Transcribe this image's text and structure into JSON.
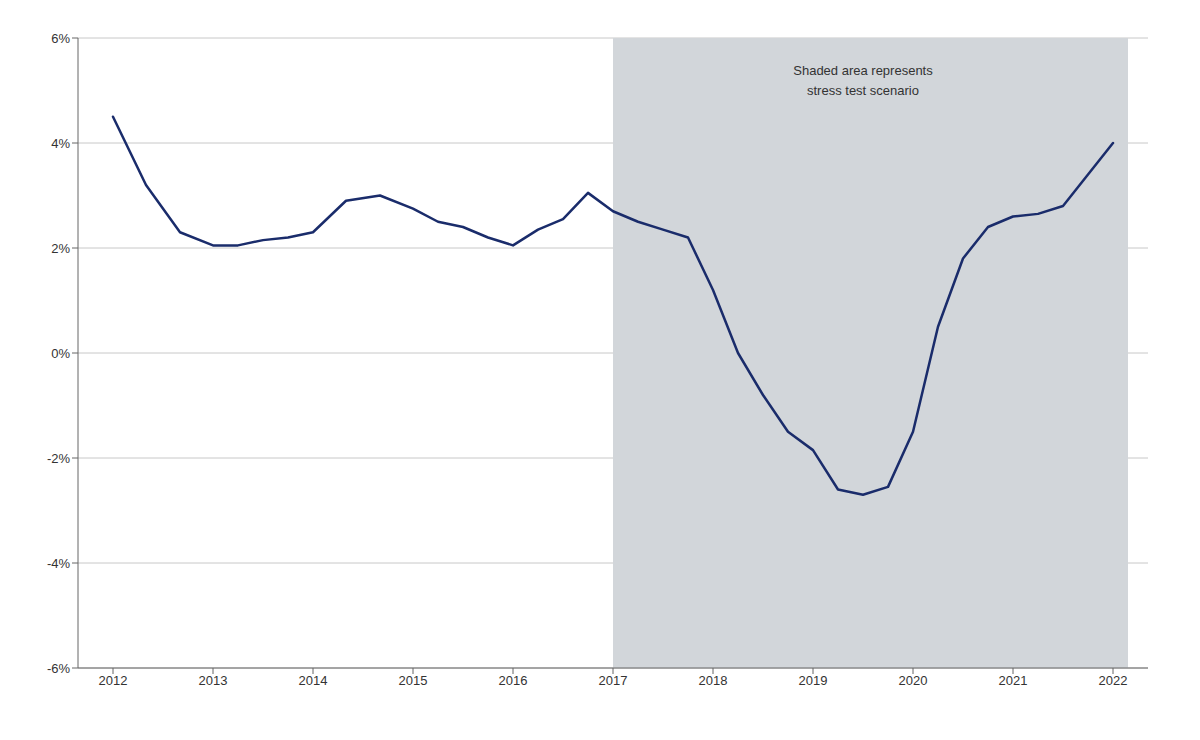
{
  "chart_data": {
    "type": "line",
    "x": [
      2012.0,
      2012.33,
      2012.67,
      2013.0,
      2013.25,
      2013.5,
      2013.75,
      2014.0,
      2014.33,
      2014.67,
      2015.0,
      2015.25,
      2015.5,
      2015.75,
      2016.0,
      2016.25,
      2016.5,
      2016.75,
      2017.0,
      2017.25,
      2017.5,
      2017.75,
      2018.0,
      2018.25,
      2018.5,
      2018.75,
      2019.0,
      2019.25,
      2019.5,
      2019.75,
      2020.0,
      2020.25,
      2020.5,
      2020.75,
      2021.0,
      2021.25,
      2021.5,
      2021.75,
      2022.0
    ],
    "values": [
      4.5,
      3.2,
      2.3,
      2.05,
      2.05,
      2.15,
      2.2,
      2.3,
      2.9,
      3.0,
      2.75,
      2.5,
      2.4,
      2.2,
      2.05,
      2.35,
      2.55,
      3.05,
      2.7,
      2.5,
      2.35,
      2.2,
      1.2,
      0.0,
      -0.8,
      -1.5,
      -1.85,
      -2.6,
      -2.7,
      -2.55,
      -1.5,
      0.5,
      1.8,
      2.4,
      2.6,
      2.65,
      2.8,
      3.4,
      4.0
    ],
    "color": "#1a2c6b",
    "xlim": [
      2011.65,
      2022.35
    ],
    "xticks": [
      2012,
      2013,
      2014,
      2015,
      2016,
      2017,
      2018,
      2019,
      2020,
      2021,
      2022
    ],
    "ylim": [
      -6,
      6
    ],
    "yticks": [
      {
        "value": -6,
        "label": "-6%"
      },
      {
        "value": -4,
        "label": "-4%"
      },
      {
        "value": -2,
        "label": "-2%"
      },
      {
        "value": 0,
        "label": "0%"
      },
      {
        "value": 2,
        "label": "2%"
      },
      {
        "value": 4,
        "label": "4%"
      },
      {
        "value": 6,
        "label": "6%"
      }
    ],
    "grid": "y",
    "shaded_regions": [
      {
        "x": [
          2017.0,
          2022.15
        ],
        "color": "#d2d6da"
      }
    ],
    "annotations": [
      {
        "text": "Shaded area represents\nstress test scenario",
        "x": 2019.5,
        "y": 5.55
      }
    ]
  }
}
